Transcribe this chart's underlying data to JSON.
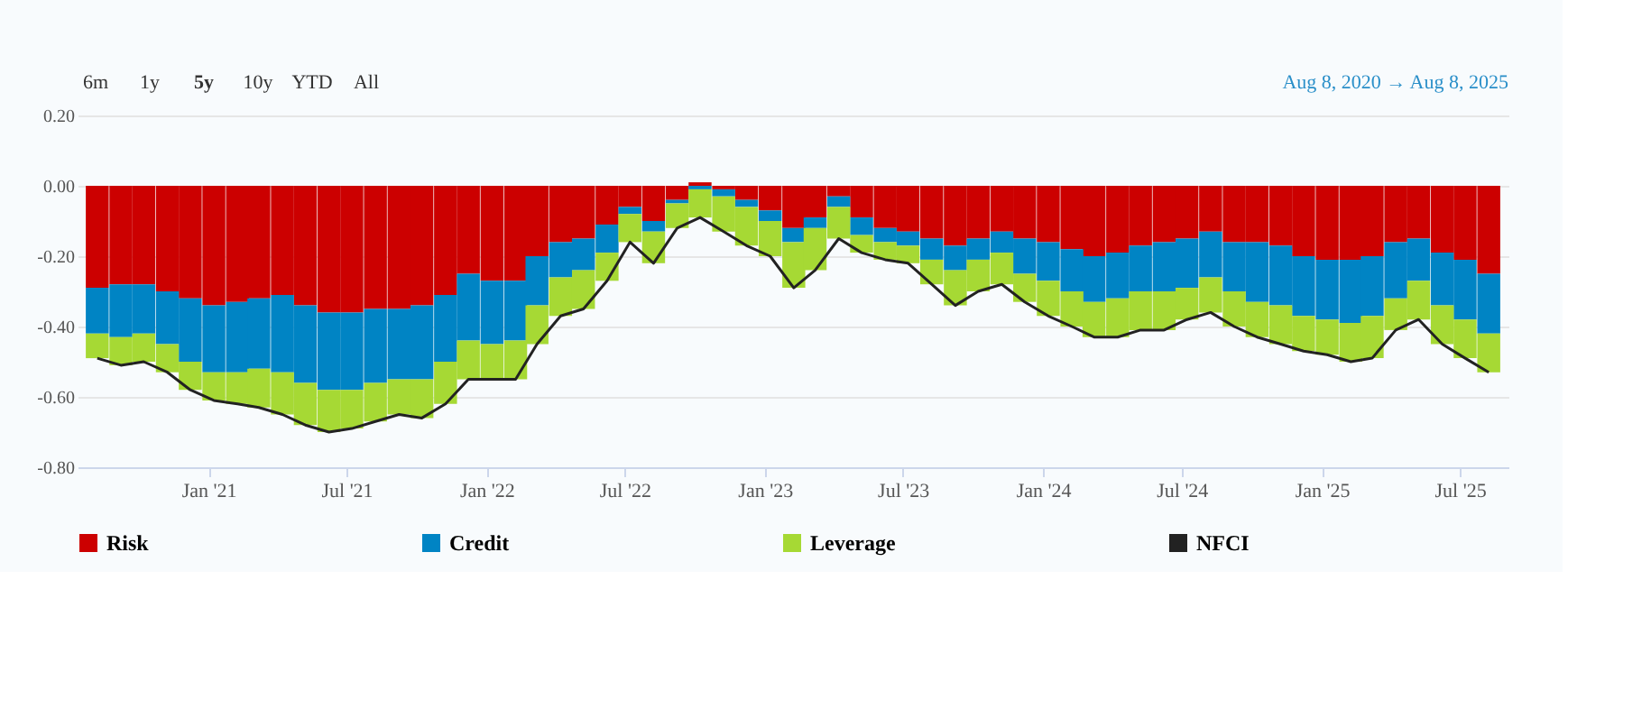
{
  "chart_data": {
    "type": "bar",
    "stacked": true,
    "annotations": [
      "6m",
      "1y",
      "5y",
      "10y",
      "YTD",
      "All",
      "Aug 8, 2020 → Aug 8, 2025"
    ],
    "x": [
      "2020-08-08",
      "2020-09-08",
      "2020-10-08",
      "2020-11-08",
      "2020-12-08",
      "2021-01-08",
      "2021-02-08",
      "2021-03-08",
      "2021-04-08",
      "2021-05-08",
      "2021-06-08",
      "2021-07-08",
      "2021-08-08",
      "2021-09-08",
      "2021-10-08",
      "2021-11-08",
      "2021-12-08",
      "2022-01-08",
      "2022-02-08",
      "2022-03-08",
      "2022-04-08",
      "2022-05-08",
      "2022-06-08",
      "2022-07-08",
      "2022-08-08",
      "2022-09-08",
      "2022-10-08",
      "2022-11-08",
      "2022-12-08",
      "2023-01-08",
      "2023-02-08",
      "2023-03-08",
      "2023-04-08",
      "2023-05-08",
      "2023-06-08",
      "2023-07-08",
      "2023-08-08",
      "2023-09-08",
      "2023-10-08",
      "2023-11-08",
      "2023-12-08",
      "2024-01-08",
      "2024-02-08",
      "2024-03-08",
      "2024-04-08",
      "2024-05-08",
      "2024-06-08",
      "2024-07-08",
      "2024-08-08",
      "2024-09-08",
      "2024-10-08",
      "2024-11-08",
      "2024-12-08",
      "2025-01-08",
      "2025-02-08",
      "2025-03-08",
      "2025-04-08",
      "2025-05-08",
      "2025-06-08",
      "2025-07-08",
      "2025-08-08"
    ],
    "series": [
      {
        "name": "Risk",
        "color": "#cc0000",
        "values": [
          -0.29,
          -0.28,
          -0.28,
          -0.3,
          -0.32,
          -0.34,
          -0.33,
          -0.32,
          -0.31,
          -0.34,
          -0.36,
          -0.36,
          -0.35,
          -0.35,
          -0.34,
          -0.31,
          -0.25,
          -0.27,
          -0.27,
          -0.2,
          -0.16,
          -0.15,
          -0.11,
          -0.06,
          -0.1,
          -0.04,
          0.01,
          -0.01,
          -0.04,
          -0.07,
          -0.12,
          -0.09,
          -0.03,
          -0.09,
          -0.12,
          -0.13,
          -0.15,
          -0.17,
          -0.15,
          -0.13,
          -0.15,
          -0.16,
          -0.18,
          -0.2,
          -0.19,
          -0.17,
          -0.16,
          -0.15,
          -0.13,
          -0.16,
          -0.16,
          -0.17,
          -0.2,
          -0.21,
          -0.21,
          -0.2,
          -0.16,
          -0.15,
          -0.19,
          -0.21,
          -0.25
        ]
      },
      {
        "name": "Credit",
        "color": "#0084c4",
        "values": [
          -0.13,
          -0.15,
          -0.14,
          -0.15,
          -0.18,
          -0.19,
          -0.2,
          -0.2,
          -0.22,
          -0.22,
          -0.22,
          -0.22,
          -0.21,
          -0.2,
          -0.21,
          -0.19,
          -0.19,
          -0.18,
          -0.17,
          -0.14,
          -0.1,
          -0.09,
          -0.08,
          -0.02,
          -0.03,
          -0.01,
          -0.01,
          -0.02,
          -0.02,
          -0.03,
          -0.04,
          -0.03,
          -0.03,
          -0.05,
          -0.04,
          -0.04,
          -0.06,
          -0.07,
          -0.06,
          -0.06,
          -0.1,
          -0.11,
          -0.12,
          -0.13,
          -0.13,
          -0.13,
          -0.14,
          -0.14,
          -0.13,
          -0.14,
          -0.17,
          -0.17,
          -0.17,
          -0.17,
          -0.18,
          -0.17,
          -0.16,
          -0.12,
          -0.15,
          -0.17,
          -0.17
        ]
      },
      {
        "name": "Leverage",
        "color": "#a6d934",
        "values": [
          -0.07,
          -0.08,
          -0.08,
          -0.08,
          -0.08,
          -0.08,
          -0.09,
          -0.11,
          -0.12,
          -0.12,
          -0.12,
          -0.11,
          -0.11,
          -0.1,
          -0.11,
          -0.12,
          -0.11,
          -0.1,
          -0.11,
          -0.11,
          -0.11,
          -0.11,
          -0.08,
          -0.08,
          -0.09,
          -0.07,
          -0.08,
          -0.1,
          -0.11,
          -0.1,
          -0.13,
          -0.12,
          -0.09,
          -0.05,
          -0.05,
          -0.05,
          -0.07,
          -0.1,
          -0.09,
          -0.09,
          -0.08,
          -0.1,
          -0.1,
          -0.1,
          -0.11,
          -0.11,
          -0.11,
          -0.09,
          -0.1,
          -0.1,
          -0.1,
          -0.11,
          -0.1,
          -0.1,
          -0.11,
          -0.12,
          -0.09,
          -0.11,
          -0.11,
          -0.11,
          -0.11
        ]
      },
      {
        "name": "NFCI",
        "type": "line",
        "color": "#222222",
        "values": [
          -0.49,
          -0.51,
          -0.5,
          -0.53,
          -0.58,
          -0.61,
          -0.62,
          -0.63,
          -0.65,
          -0.68,
          -0.7,
          -0.69,
          -0.67,
          -0.65,
          -0.66,
          -0.62,
          -0.55,
          -0.55,
          -0.55,
          -0.45,
          -0.37,
          -0.35,
          -0.27,
          -0.16,
          -0.22,
          -0.12,
          -0.09,
          -0.13,
          -0.17,
          -0.2,
          -0.29,
          -0.24,
          -0.15,
          -0.19,
          -0.21,
          -0.22,
          -0.28,
          -0.34,
          -0.3,
          -0.28,
          -0.33,
          -0.37,
          -0.4,
          -0.43,
          -0.43,
          -0.41,
          -0.41,
          -0.38,
          -0.36,
          -0.4,
          -0.43,
          -0.45,
          -0.47,
          -0.48,
          -0.5,
          -0.49,
          -0.41,
          -0.38,
          -0.45,
          -0.49,
          -0.53
        ]
      }
    ],
    "xlim": [
      "2020-07-25",
      "2025-08-22"
    ],
    "xticks": [
      {
        "value": "2021-01-01",
        "label": "Jan '21"
      },
      {
        "value": "2021-07-01",
        "label": "Jul '21"
      },
      {
        "value": "2022-01-01",
        "label": "Jan '22"
      },
      {
        "value": "2022-07-01",
        "label": "Jul '22"
      },
      {
        "value": "2023-01-01",
        "label": "Jan '23"
      },
      {
        "value": "2023-07-01",
        "label": "Jul '23"
      },
      {
        "value": "2024-01-01",
        "label": "Jan '24"
      },
      {
        "value": "2024-07-01",
        "label": "Jul '24"
      },
      {
        "value": "2025-01-01",
        "label": "Jan '25"
      },
      {
        "value": "2025-07-01",
        "label": "Jul '25"
      }
    ],
    "ylim": [
      -0.8,
      0.2
    ],
    "yticks": [
      {
        "value": -0.8,
        "label": "-0.80"
      },
      {
        "value": -0.6,
        "label": "-0.60"
      },
      {
        "value": -0.4,
        "label": "-0.40"
      },
      {
        "value": -0.2,
        "label": "-0.20"
      },
      {
        "value": 0,
        "label": "0.00"
      },
      {
        "value": 0.2,
        "label": "0.20"
      }
    ],
    "grid": "y",
    "legend": "bottom",
    "line_style": "solid",
    "marker": "none"
  }
}
